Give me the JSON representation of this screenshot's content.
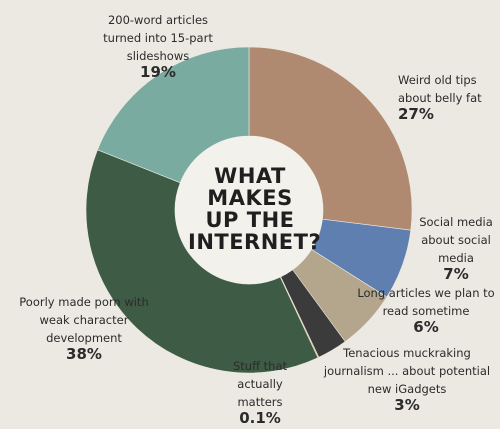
{
  "chart_data": {
    "type": "pie",
    "title": "WHAT MAKES UP THE INTERNET?",
    "slices": [
      {
        "label": "Weird old tips about belly fat",
        "value": 27,
        "display": "27%",
        "color": "#b08a70"
      },
      {
        "label": "Social media about social media",
        "value": 7,
        "display": "7%",
        "color": "#5f7fb0"
      },
      {
        "label": "Long articles we plan to read sometime",
        "value": 6,
        "display": "6%",
        "color": "#b3a68c"
      },
      {
        "label": "Tenacious muckraking journalism ... about potential new iGadgets",
        "value": 3,
        "display": "3%",
        "color": "#3b3b3b"
      },
      {
        "label": "Stuff that actually matters",
        "value": 0.1,
        "display": "0.1%",
        "color": "#d9a23c"
      },
      {
        "label": "Poorly made porn with weak character development",
        "value": 38,
        "display": "38%",
        "color": "#3e5b45"
      },
      {
        "label": "200-word articles turned into 15-part slideshows",
        "value": 19,
        "display": "19%",
        "color": "#7aaba0"
      }
    ]
  }
}
